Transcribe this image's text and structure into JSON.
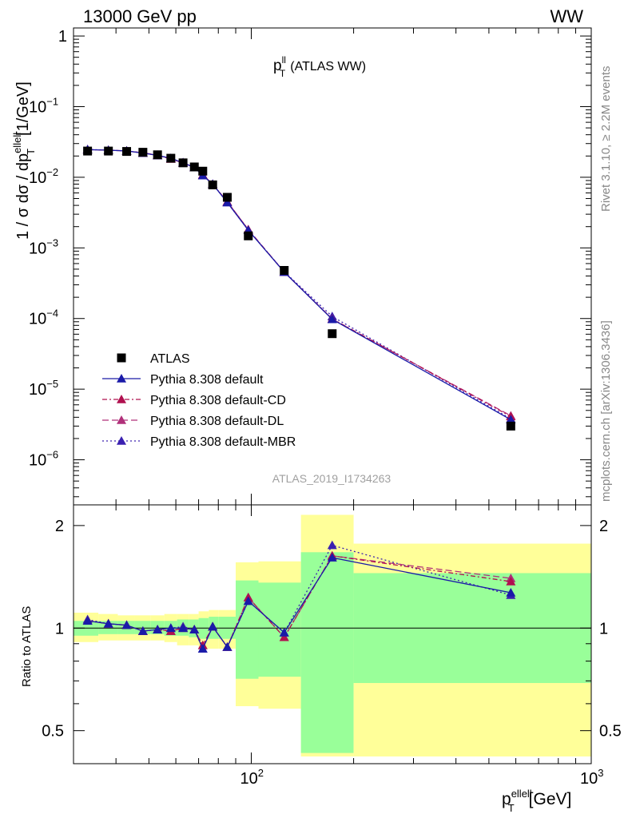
{
  "header": {
    "left": "13000 GeV pp",
    "right": "WW"
  },
  "side": {
    "rivet": "Rivet 3.1.10, ≥ 2.2M events",
    "mcplots": "mcplots.cern.ch [arXiv:1306.3436]"
  },
  "analysis_id": "ATLAS_2019_I1734263",
  "colors": {
    "atlas": "#000000",
    "default": "#1a1aa8",
    "cd": "#b0104f",
    "dl": "#b0307a",
    "mbr": "#3a20b0",
    "band_green": "#99ff99",
    "band_yellow": "#ffff99"
  },
  "chart_data": [
    {
      "type": "scatter",
      "title_main": "p",
      "title_sup": "ll",
      "title_sub": "T",
      "title_rest": "(ATLAS WW)",
      "ylabel": "1 / σ  dσ / dp",
      "ylabel_sup": "ellell",
      "ylabel_sub": "T",
      "ylabel_unit": "[1/GeV]",
      "xscale": "log",
      "yscale": "log",
      "xlim": [
        30,
        1000
      ],
      "ylim": [
        2.3e-07,
        1.3
      ],
      "y_ticks": [
        {
          "v": 1,
          "label": "1"
        },
        {
          "v": 0.1,
          "base": "10",
          "exp": "−1"
        },
        {
          "v": 0.01,
          "base": "10",
          "exp": "−2"
        },
        {
          "v": 0.001,
          "base": "10",
          "exp": "−3"
        },
        {
          "v": 0.0001,
          "base": "10",
          "exp": "−4"
        },
        {
          "v": 1e-05,
          "base": "10",
          "exp": "−5"
        },
        {
          "v": 1e-06,
          "base": "10",
          "exp": "−6"
        }
      ],
      "legend_position": "left-middle",
      "x": [
        33,
        38,
        43,
        48,
        53,
        58,
        63,
        68,
        72,
        77,
        85,
        98,
        125,
        173,
        580
      ],
      "series": [
        {
          "name": "ATLAS",
          "marker": "square",
          "values": [
            0.0235,
            0.0235,
            0.0232,
            0.0226,
            0.0208,
            0.0186,
            0.016,
            0.014,
            0.0122,
            0.0078,
            0.0052,
            0.00148,
            0.00048,
            6.1e-05,
            3e-06
          ]
        },
        {
          "name": "Pythia 8.308 default",
          "marker": "triangle",
          "dash": "",
          "values": [
            0.0246,
            0.0242,
            0.0236,
            0.022,
            0.0204,
            0.0186,
            0.016,
            0.0138,
            0.0106,
            0.008,
            0.0044,
            0.00178,
            0.000455,
            9.75e-05,
            3.7e-06
          ]
        },
        {
          "name": "Pythia 8.308 default-CD",
          "marker": "triangle",
          "dash": "6,3,2,3",
          "values": [
            0.0246,
            0.0242,
            0.0236,
            0.022,
            0.0204,
            0.0182,
            0.016,
            0.0138,
            0.0108,
            0.008,
            0.0045,
            0.00182,
            0.000455,
            9.9e-05,
            4.1e-06
          ]
        },
        {
          "name": "Pythia 8.308 default-DL",
          "marker": "triangle",
          "dash": "8,4",
          "values": [
            0.0246,
            0.0242,
            0.0236,
            0.0222,
            0.0206,
            0.0183,
            0.016,
            0.0138,
            0.0108,
            0.008,
            0.0045,
            0.00182,
            0.000455,
            9.8e-05,
            4.2e-06
          ]
        },
        {
          "name": "Pythia 8.308 default-MBR",
          "marker": "triangle",
          "dash": "2,3",
          "values": [
            0.0248,
            0.0242,
            0.0236,
            0.0222,
            0.0204,
            0.0185,
            0.0162,
            0.0138,
            0.0106,
            0.008,
            0.0044,
            0.00178,
            0.00046,
            0.000107,
            3.8e-06
          ]
        }
      ]
    },
    {
      "type": "scatter",
      "xlabel": "p",
      "xlabel_sup": "ellell",
      "xlabel_sub": "T",
      "xlabel_unit": "[GeV]",
      "ylabel": "Ratio to ATLAS",
      "xscale": "log",
      "yscale": "log",
      "xlim": [
        30,
        1000
      ],
      "ylim": [
        0.4,
        2.3
      ],
      "y_ticks": [
        {
          "v": 2,
          "label": "2"
        },
        {
          "v": 1,
          "label": "1"
        },
        {
          "v": 0.5,
          "label": "0.5"
        }
      ],
      "x_ticks": [
        {
          "v": 100,
          "base": "10",
          "exp": "2"
        },
        {
          "v": 1000,
          "base": "10",
          "exp": "3"
        }
      ],
      "bins": [
        {
          "lo": 30,
          "hi": 35.5,
          "g_lo": 0.95,
          "g_hi": 1.05,
          "y_lo": 0.91,
          "y_hi": 1.11
        },
        {
          "lo": 35.5,
          "hi": 40.5,
          "g_lo": 0.96,
          "g_hi": 1.05,
          "y_lo": 0.92,
          "y_hi": 1.1
        },
        {
          "lo": 40.5,
          "hi": 45.5,
          "g_lo": 0.96,
          "g_hi": 1.05,
          "y_lo": 0.92,
          "y_hi": 1.09
        },
        {
          "lo": 45.5,
          "hi": 50.5,
          "g_lo": 0.96,
          "g_hi": 1.05,
          "y_lo": 0.92,
          "y_hi": 1.09
        },
        {
          "lo": 50.5,
          "hi": 55.5,
          "g_lo": 0.96,
          "g_hi": 1.05,
          "y_lo": 0.92,
          "y_hi": 1.09
        },
        {
          "lo": 55.5,
          "hi": 60.5,
          "g_lo": 0.95,
          "g_hi": 1.05,
          "y_lo": 0.91,
          "y_hi": 1.1
        },
        {
          "lo": 60.5,
          "hi": 65.5,
          "g_lo": 0.95,
          "g_hi": 1.06,
          "y_lo": 0.89,
          "y_hi": 1.1
        },
        {
          "lo": 65.5,
          "hi": 70,
          "g_lo": 0.94,
          "g_hi": 1.06,
          "y_lo": 0.89,
          "y_hi": 1.1
        },
        {
          "lo": 70,
          "hi": 75,
          "g_lo": 0.93,
          "g_hi": 1.07,
          "y_lo": 0.87,
          "y_hi": 1.12
        },
        {
          "lo": 75,
          "hi": 80,
          "g_lo": 0.93,
          "g_hi": 1.08,
          "y_lo": 0.87,
          "y_hi": 1.13
        },
        {
          "lo": 80,
          "hi": 90,
          "g_lo": 0.93,
          "g_hi": 1.08,
          "y_lo": 0.87,
          "y_hi": 1.13
        },
        {
          "lo": 90,
          "hi": 105,
          "g_lo": 0.71,
          "g_hi": 1.38,
          "y_lo": 0.59,
          "y_hi": 1.56
        },
        {
          "lo": 105,
          "hi": 140,
          "g_lo": 0.72,
          "g_hi": 1.36,
          "y_lo": 0.58,
          "y_hi": 1.57
        },
        {
          "lo": 140,
          "hi": 200,
          "g_lo": 0.43,
          "g_hi": 1.67,
          "y_lo": 0.42,
          "y_hi": 2.15
        },
        {
          "lo": 200,
          "hi": 1000,
          "g_lo": 0.69,
          "g_hi": 1.45,
          "y_lo": 0.42,
          "y_hi": 1.77
        }
      ],
      "x": [
        33,
        38,
        43,
        48,
        53,
        58,
        63,
        68,
        72,
        77,
        85,
        98,
        125,
        173,
        580
      ],
      "series": [
        {
          "name": "Pythia 8.308 default",
          "values": [
            1.05,
            1.03,
            1.02,
            0.98,
            0.99,
            1.0,
            1.0,
            0.99,
            0.87,
            1.01,
            0.88,
            1.2,
            0.97,
            1.61,
            1.27
          ]
        },
        {
          "name": "Pythia 8.308 default-CD",
          "values": [
            1.05,
            1.03,
            1.02,
            0.98,
            0.99,
            0.98,
            1.0,
            0.99,
            0.89,
            1.01,
            0.88,
            1.23,
            0.94,
            1.63,
            1.37
          ]
        },
        {
          "name": "Pythia 8.308 default-DL",
          "values": [
            1.05,
            1.03,
            1.02,
            0.98,
            0.99,
            0.98,
            1.0,
            0.99,
            0.89,
            1.01,
            0.88,
            1.23,
            0.94,
            1.63,
            1.4
          ]
        },
        {
          "name": "Pythia 8.308 default-MBR",
          "values": [
            1.06,
            1.03,
            1.02,
            0.98,
            0.99,
            1.0,
            1.01,
            0.99,
            0.87,
            1.01,
            0.88,
            1.2,
            0.97,
            1.75,
            1.25
          ]
        }
      ]
    }
  ]
}
